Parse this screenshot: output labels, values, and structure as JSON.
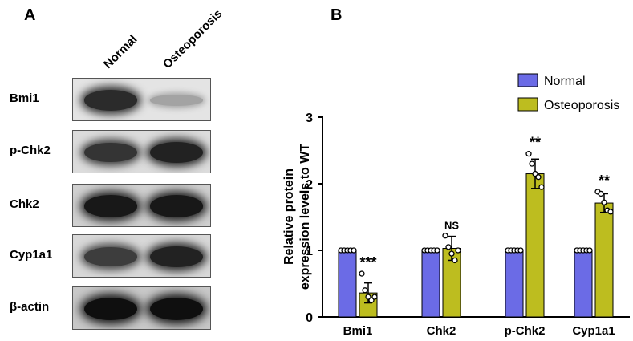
{
  "panels": {
    "a": "A",
    "b": "B"
  },
  "blot": {
    "lanes": [
      "Normal",
      "Osteoporosis"
    ],
    "rows": [
      {
        "label": "Bmi1",
        "bands": [
          0.85,
          0.2
        ],
        "background": "#e4e4e4"
      },
      {
        "label": "p-Chk2",
        "bands": [
          0.8,
          0.9
        ],
        "background": "#dcdcdc"
      },
      {
        "label": "Chk2",
        "bands": [
          0.95,
          0.95
        ],
        "background": "#d0d0d0"
      },
      {
        "label": "Cyp1a1",
        "bands": [
          0.75,
          0.9
        ],
        "background": "#d8d8d8"
      },
      {
        "label": "β-actin",
        "bands": [
          1.0,
          1.0
        ],
        "background": "#c8c8c8"
      }
    ]
  },
  "chart_data": {
    "type": "bar",
    "categories": [
      "Bmi1",
      "Chk2",
      "p-Chk2",
      "Cyp1a1"
    ],
    "ylabel": "Relative protein expression levels to WT",
    "ylim": [
      0,
      3
    ],
    "yticks": [
      0,
      1,
      2,
      3
    ],
    "legend_position": "top-right",
    "series": [
      {
        "name": "Normal",
        "color": "#6b6be6",
        "values": [
          1.0,
          1.0,
          1.0,
          1.0
        ],
        "errors": [
          0,
          0,
          0,
          0
        ],
        "points": [
          [
            1,
            1,
            1,
            1,
            1
          ],
          [
            1,
            1,
            1,
            1,
            1
          ],
          [
            1,
            1,
            1,
            1,
            1
          ],
          [
            1,
            1,
            1,
            1,
            1
          ]
        ]
      },
      {
        "name": "Osteoporosis",
        "color": "#bdbd1f",
        "values": [
          0.36,
          1.03,
          2.15,
          1.71
        ],
        "errors": [
          0.15,
          0.18,
          0.22,
          0.14
        ],
        "points": [
          [
            0.65,
            0.4,
            0.3,
            0.25,
            0.3
          ],
          [
            1.22,
            1.05,
            0.95,
            0.85,
            1.0
          ],
          [
            2.45,
            2.3,
            2.15,
            2.1,
            1.95
          ],
          [
            1.88,
            1.85,
            1.72,
            1.6,
            1.58
          ]
        ]
      }
    ],
    "significance": [
      "***",
      "NS",
      "**",
      "**"
    ]
  }
}
